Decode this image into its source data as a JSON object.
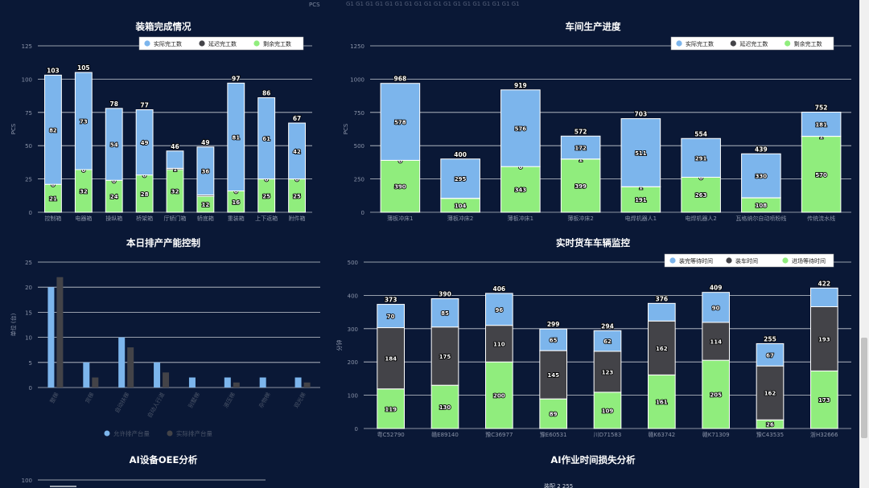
{
  "top_stray": {
    "unit": "PCS",
    "fragments": "G1 G1 G1 G1 G1 G1 G1 G1 G1 G1 G1 G1 G1 G1 G1 G1 G1 G1"
  },
  "colors": {
    "blue": "#7cb5ec",
    "dark": "#434348",
    "green": "#90ed7d",
    "bg": "#0a1836"
  },
  "chart_data": [
    {
      "id": "packing",
      "type": "bar",
      "title": "装箱完成情况",
      "ylabel": "PCS",
      "ylim": [
        0,
        125
      ],
      "yticks": [
        0,
        25,
        50,
        75,
        100,
        125
      ],
      "legend": {
        "position": "top-right",
        "items": [
          "实际完工数",
          "延迟完工数",
          "剩余完工数"
        ]
      },
      "categories": [
        "控制箱",
        "电器箱",
        "操纵箱",
        "桥架箱",
        "厅轿门箱",
        "轿底箱",
        "重装箱",
        "上下返箱",
        "附件箱"
      ],
      "totals": [
        103,
        105,
        78,
        77,
        46,
        49,
        97,
        86,
        67
      ],
      "series": [
        {
          "name": "剩余完工数",
          "color": "#90ed7d",
          "values": [
            21,
            32,
            24,
            28,
            32,
            12,
            16,
            25,
            25
          ]
        },
        {
          "name": "延迟完工数",
          "color": "#434348",
          "values": [
            0,
            0,
            0,
            0,
            1,
            1,
            0,
            0,
            0
          ]
        },
        {
          "name": "实际完工数",
          "color": "#7cb5ec",
          "values": [
            82,
            73,
            54,
            49,
            13,
            36,
            81,
            61,
            42
          ]
        }
      ],
      "labels": [
        [
          "21",
          "32",
          "24",
          "28",
          "32",
          "12",
          "16",
          "25",
          "25"
        ],
        [
          "0",
          "0",
          "0",
          "0",
          "1",
          "",
          "0",
          "0",
          "0"
        ],
        [
          "82",
          "73",
          "54",
          "49",
          "",
          "36",
          "81",
          "61",
          "42"
        ]
      ]
    },
    {
      "id": "workshop",
      "type": "bar",
      "title": "车间生产进度",
      "ylabel": "PCS",
      "ylim": [
        0,
        1250
      ],
      "yticks": [
        0,
        250,
        500,
        750,
        1000,
        1250
      ],
      "legend": {
        "position": "top-right",
        "items": [
          "实际完工数",
          "延迟完工数",
          "剩余完工数"
        ]
      },
      "categories": [
        "薄板冲床1",
        "薄板冲床2",
        "薄板冲床1",
        "薄板冲床2",
        "电焊机器人1",
        "电焊机器人2",
        "瓦格纳尔自动喷粉线",
        "传统流水线"
      ],
      "totals": [
        968,
        400,
        919,
        572,
        703,
        554,
        439,
        752
      ],
      "series": [
        {
          "name": "剩余完工数",
          "color": "#90ed7d",
          "values": [
            390,
            104,
            343,
            399,
            191,
            263,
            108,
            570
          ]
        },
        {
          "name": "延迟完工数",
          "color": "#434348",
          "values": [
            0,
            1,
            0,
            1,
            1,
            0,
            1,
            1
          ]
        },
        {
          "name": "实际完工数",
          "color": "#7cb5ec",
          "values": [
            578,
            295,
            576,
            172,
            511,
            291,
            330,
            181
          ]
        }
      ],
      "labels": [
        [
          "390",
          "104",
          "343",
          "399",
          "191",
          "263",
          "108",
          "570"
        ],
        [
          "0",
          "",
          "0",
          "1",
          "1",
          "0",
          "",
          "1"
        ],
        [
          "578",
          "295",
          "576",
          "172",
          "511",
          "291",
          "330",
          "181"
        ]
      ]
    },
    {
      "id": "capacity",
      "type": "bar",
      "title": "本日排产产能控制",
      "ylabel": "单位 (台)",
      "ylim": [
        0,
        25
      ],
      "yticks": [
        0,
        5,
        10,
        15,
        20,
        25
      ],
      "legend": {
        "position": "bottom",
        "items": [
          "允许排产台量",
          "实际排产台量"
        ]
      },
      "categories": [
        "整梯",
        "货梯",
        "自动扶梯",
        "自动人行道",
        "别墅梯",
        "液压梯",
        "杂物梯",
        "观光梯"
      ],
      "series": [
        {
          "name": "允许排产台量",
          "color": "#7cb5ec",
          "values": [
            20,
            5,
            10,
            5,
            2,
            2,
            2,
            2
          ]
        },
        {
          "name": "实际排产台量",
          "color": "#434348",
          "values": [
            22,
            2,
            8,
            3,
            0,
            1,
            0,
            1
          ]
        }
      ]
    },
    {
      "id": "trucks",
      "type": "bar",
      "title": "实时货车车辆监控",
      "ylabel": "分钟",
      "ylim": [
        0,
        500
      ],
      "yticks": [
        0,
        100,
        200,
        300,
        400,
        500
      ],
      "legend": {
        "position": "top-right",
        "items": [
          "装完等待时间",
          "装车时间",
          "进场等待时间"
        ]
      },
      "categories": [
        "粤C52790",
        "赣E89140",
        "豫C36977",
        "豫E60531",
        "川D71583",
        "赣K63742",
        "赣K71309",
        "豫C43535",
        "浙H32666"
      ],
      "totals": [
        373,
        390,
        406,
        299,
        294,
        376,
        409,
        255,
        422
      ],
      "series": [
        {
          "name": "进场等待时间",
          "color": "#90ed7d",
          "values": [
            119,
            130,
            200,
            89,
            109,
            161,
            205,
            26,
            173
          ]
        },
        {
          "name": "装车时间",
          "color": "#434348",
          "values": [
            184,
            175,
            110,
            145,
            123,
            162,
            114,
            162,
            193
          ]
        },
        {
          "name": "装完等待时间",
          "color": "#7cb5ec",
          "values": [
            70,
            85,
            96,
            65,
            62,
            53,
            90,
            67,
            56
          ]
        }
      ],
      "labels": [
        [
          "119",
          "130",
          "200",
          "89",
          "109",
          "161",
          "205",
          "26",
          "173"
        ],
        [
          "184",
          "175",
          "110",
          "145",
          "123",
          "162",
          "114",
          "162",
          "193"
        ],
        [
          "70",
          "85",
          "96",
          "65",
          "62",
          "",
          "90",
          "67",
          ""
        ]
      ]
    },
    {
      "id": "oee",
      "type": "line",
      "title": "AI设备OEE分析",
      "ylim": [
        0,
        100
      ],
      "yticks": [
        100
      ]
    },
    {
      "id": "loss",
      "type": "bar",
      "title": "AI作业时间损失分析",
      "legend_peek": "装配 2 255"
    }
  ]
}
